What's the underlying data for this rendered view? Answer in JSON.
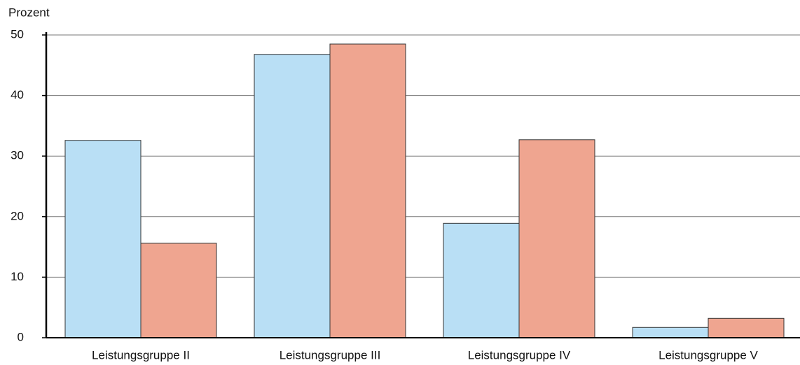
{
  "chart_data": {
    "type": "bar",
    "ylabel": "Prozent",
    "categories": [
      "Leistungsgruppe II",
      "Leistungsgruppe III",
      "Leistungsgruppe IV",
      "Leistungsgruppe V"
    ],
    "series": [
      {
        "color": "#b9dff5",
        "values": [
          32.6,
          46.8,
          18.9,
          1.7
        ]
      },
      {
        "color": "#efa590",
        "values": [
          15.6,
          48.5,
          32.7,
          3.2
        ]
      }
    ],
    "ylim": [
      0,
      50
    ],
    "yticks": [
      0,
      10,
      20,
      30,
      40,
      50
    ],
    "grid": true
  }
}
